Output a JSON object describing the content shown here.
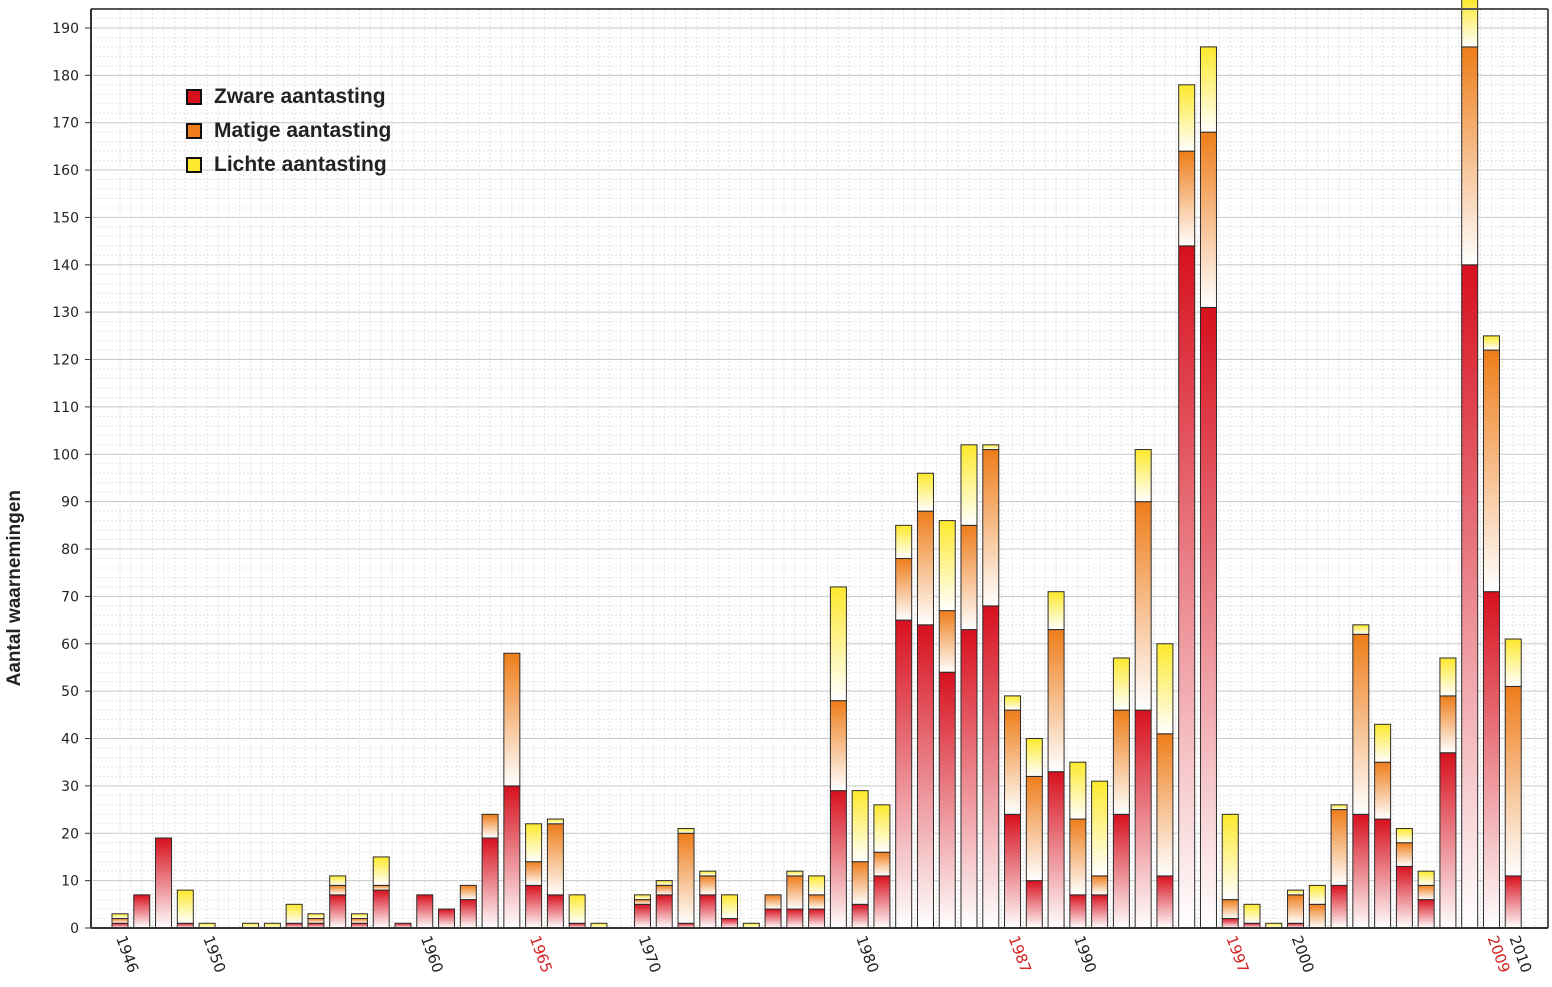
{
  "chart_data": {
    "type": "bar",
    "stacked": true,
    "title": "",
    "xlabel": "",
    "ylabel": "Aantal waarnemingen",
    "ylim": [
      0,
      190
    ],
    "y_ticks": [
      0,
      10,
      20,
      30,
      40,
      50,
      60,
      70,
      80,
      90,
      100,
      110,
      120,
      130,
      140,
      150,
      160,
      170,
      180,
      190
    ],
    "x_range": [
      1946,
      2012
    ],
    "x_tick_labels": [
      {
        "year": 1946,
        "label": "1946",
        "highlight": false
      },
      {
        "year": 1950,
        "label": "1950",
        "highlight": false
      },
      {
        "year": 1960,
        "label": "1960",
        "highlight": false
      },
      {
        "year": 1965,
        "label": "1965",
        "highlight": true
      },
      {
        "year": 1970,
        "label": "1970",
        "highlight": false
      },
      {
        "year": 1980,
        "label": "1980",
        "highlight": false
      },
      {
        "year": 1987,
        "label": "1987",
        "highlight": true
      },
      {
        "year": 1990,
        "label": "1990",
        "highlight": false
      },
      {
        "year": 1997,
        "label": "1997",
        "highlight": true
      },
      {
        "year": 2000,
        "label": "2000",
        "highlight": false
      },
      {
        "year": 2009,
        "label": "2009",
        "highlight": true
      },
      {
        "year": 2010,
        "label": "2010",
        "highlight": false
      }
    ],
    "grid": true,
    "legend_position": "top-left",
    "colors": {
      "zware": "#d7101e",
      "matige": "#ee7d1a",
      "lichte": "#fde92c",
      "highlight_label": "#d42020"
    },
    "legend": [
      {
        "key": "zware",
        "label": "Zware aantasting"
      },
      {
        "key": "matige",
        "label": "Matige aantasting"
      },
      {
        "key": "lichte",
        "label": "Lichte aantasting"
      }
    ],
    "x": [
      1946,
      1947,
      1948,
      1949,
      1950,
      1951,
      1952,
      1953,
      1954,
      1955,
      1956,
      1957,
      1958,
      1959,
      1960,
      1961,
      1962,
      1963,
      1964,
      1965,
      1966,
      1967,
      1968,
      1969,
      1970,
      1971,
      1972,
      1973,
      1974,
      1975,
      1976,
      1977,
      1978,
      1979,
      1980,
      1981,
      1982,
      1983,
      1984,
      1985,
      1986,
      1987,
      1988,
      1989,
      1990,
      1991,
      1992,
      1993,
      1994,
      1995,
      1996,
      1997,
      1998,
      1999,
      2000,
      2001,
      2002,
      2003,
      2004,
      2005,
      2006,
      2007,
      2008,
      2009,
      2010,
      2011,
      2012
    ],
    "series": [
      {
        "name": "Zware aantasting",
        "key": "zware",
        "values": [
          1,
          7,
          19,
          1,
          0,
          0,
          0,
          0,
          1,
          1,
          7,
          1,
          8,
          1,
          7,
          4,
          6,
          19,
          30,
          9,
          7,
          1,
          0,
          0,
          5,
          7,
          1,
          7,
          2,
          0,
          4,
          4,
          4,
          29,
          5,
          11,
          65,
          64,
          54,
          63,
          68,
          24,
          10,
          33,
          7,
          7,
          24,
          46,
          11,
          144,
          131,
          2,
          1,
          0,
          1,
          0,
          9,
          24,
          23,
          13,
          6,
          37,
          140,
          71,
          11,
          0,
          0
        ]
      },
      {
        "name": "Matige aantasting",
        "key": "matige",
        "values": [
          1,
          0,
          0,
          0,
          0,
          0,
          0,
          0,
          0,
          1,
          2,
          1,
          1,
          0,
          0,
          0,
          3,
          5,
          28,
          5,
          15,
          0,
          0,
          0,
          1,
          2,
          19,
          4,
          0,
          0,
          3,
          7,
          3,
          19,
          9,
          5,
          13,
          24,
          13,
          22,
          33,
          22,
          22,
          30,
          16,
          4,
          22,
          44,
          30,
          20,
          37,
          4,
          0,
          0,
          6,
          5,
          16,
          38,
          12,
          5,
          3,
          12,
          46,
          51,
          40,
          0,
          0
        ]
      },
      {
        "name": "Lichte aantasting",
        "key": "lichte",
        "values": [
          1,
          0,
          0,
          7,
          1,
          0,
          1,
          1,
          4,
          1,
          2,
          1,
          6,
          0,
          0,
          0,
          0,
          0,
          0,
          8,
          1,
          6,
          1,
          0,
          1,
          1,
          1,
          1,
          5,
          1,
          0,
          1,
          4,
          24,
          15,
          10,
          7,
          8,
          19,
          17,
          1,
          3,
          8,
          8,
          12,
          20,
          11,
          11,
          19,
          14,
          18,
          18,
          4,
          1,
          1,
          4,
          1,
          2,
          8,
          3,
          3,
          8,
          10,
          3,
          10,
          0,
          0
        ]
      }
    ]
  }
}
